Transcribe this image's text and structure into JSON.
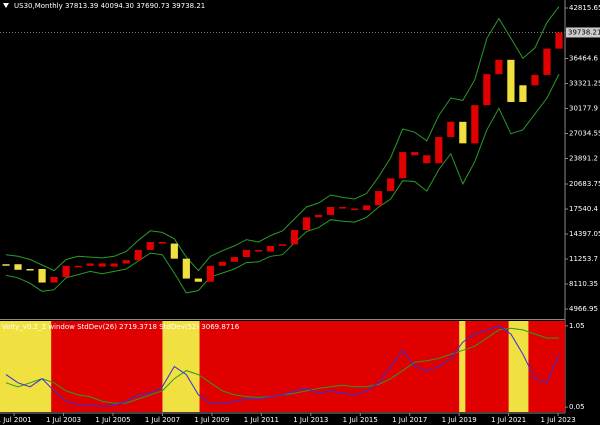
{
  "chart_data": [
    {
      "type": "candle",
      "title": "US30,Monthly  37813.39 40094.30 37690.73 39738.21",
      "xlim": [
        2000.93,
        2023.78
      ],
      "xticks": [
        {
          "value": 2001.5,
          "label": "1 Jul 2001"
        },
        {
          "value": 2003.5,
          "label": "1 Jul 2003"
        },
        {
          "value": 2005.5,
          "label": "1 Jul 2005"
        },
        {
          "value": 2007.5,
          "label": "1 Jul 2007"
        },
        {
          "value": 2009.5,
          "label": "1 Jul 2009"
        },
        {
          "value": 2011.5,
          "label": "1 Jul 2011"
        },
        {
          "value": 2013.5,
          "label": "1 Jul 2013"
        },
        {
          "value": 2015.5,
          "label": "1 Jul 2015"
        },
        {
          "value": 2017.5,
          "label": "1 Jul 2017"
        },
        {
          "value": 2019.5,
          "label": "1 Jul 2019"
        },
        {
          "value": 2021.5,
          "label": "1 Jul 2021"
        },
        {
          "value": 2023.5,
          "label": "1 Jul 2023"
        }
      ],
      "ylim": [
        3840,
        43820
      ],
      "yticks": [
        42815.65,
        36464.6,
        33321.25,
        30177.9,
        27034.55,
        23891.2,
        20683.75,
        17540.4,
        14397.05,
        11253.7,
        8110.35,
        4966.95
      ],
      "price_label": 39738.21,
      "series": [
        {
          "name": "close",
          "color": "#e00000",
          "values": [
            10600,
            9900,
            10000,
            8300,
            9000,
            10400,
            10400,
            10700,
            10300,
            10700,
            11100,
            12400,
            13400,
            13200,
            11300,
            8800,
            8400,
            10400,
            10900,
            11500,
            12400,
            12200,
            12900,
            13100,
            14900,
            16500,
            16800,
            17800,
            17600,
            17400,
            18000,
            19800,
            21400,
            24700,
            24300,
            23300,
            26600,
            28500,
            25800,
            30600,
            34500,
            36300,
            31000,
            33100,
            34400,
            37700,
            39700
          ]
        },
        {
          "name": "upper",
          "color": "#2a9a2a",
          "values": [
            11800,
            11600,
            11200,
            10500,
            9800,
            11200,
            11600,
            11500,
            11400,
            11600,
            12200,
            13600,
            14800,
            14600,
            13800,
            11500,
            9800,
            11600,
            12300,
            12900,
            13700,
            13400,
            14200,
            14800,
            16300,
            17800,
            18300,
            19300,
            19000,
            18800,
            19500,
            21600,
            24000,
            27600,
            27200,
            26100,
            29300,
            31500,
            31200,
            33800,
            39000,
            41500,
            39000,
            36500,
            37800,
            41000,
            43000
          ]
        },
        {
          "name": "lower",
          "color": "#2a9a2a",
          "values": [
            9200,
            8900,
            8200,
            7200,
            7400,
            8900,
            9300,
            9700,
            9400,
            9700,
            10000,
            11000,
            12000,
            11800,
            9500,
            7000,
            7300,
            9000,
            9500,
            10000,
            10800,
            10900,
            11600,
            11800,
            13300,
            14700,
            15200,
            16200,
            16000,
            15900,
            16500,
            17800,
            18800,
            21100,
            21000,
            19800,
            22500,
            24500,
            20700,
            23500,
            27500,
            30200,
            27000,
            27500,
            29500,
            31500,
            34500
          ]
        }
      ],
      "highlight_color": "#f0e040",
      "highlight_ranges": [
        [
          2000.93,
          2003.0
        ],
        [
          2007.5,
          2009.0
        ],
        [
          2019.5,
          2019.75
        ],
        [
          2021.5,
          2022.3
        ]
      ]
    },
    {
      "type": "line",
      "title": "Volty_v0.2_2 window  StdDev(26) 2719.3718  StdDev(52) 3069.8716",
      "xlim": [
        2000.93,
        2023.78
      ],
      "ylim": [
        -0.01,
        1.11
      ],
      "yticks": [
        1.05,
        0.05
      ],
      "background_color": "#e00000",
      "series": [
        {
          "name": "StdDev(26)",
          "color": "#3030e0",
          "values": [
            0.45,
            0.35,
            0.3,
            0.4,
            0.25,
            0.12,
            0.08,
            0.07,
            0.06,
            0.07,
            0.12,
            0.2,
            0.22,
            0.3,
            0.55,
            0.45,
            0.2,
            0.1,
            0.1,
            0.12,
            0.15,
            0.15,
            0.18,
            0.2,
            0.25,
            0.28,
            0.22,
            0.25,
            0.22,
            0.2,
            0.25,
            0.35,
            0.55,
            0.75,
            0.55,
            0.5,
            0.55,
            0.65,
            0.85,
            0.95,
            1.0,
            1.05,
            0.95,
            0.7,
            0.4,
            0.35,
            0.7
          ]
        },
        {
          "name": "StdDev(52)",
          "color": "#2a9a2a",
          "values": [
            0.35,
            0.3,
            0.35,
            0.4,
            0.35,
            0.25,
            0.2,
            0.18,
            0.12,
            0.1,
            0.1,
            0.15,
            0.2,
            0.25,
            0.4,
            0.5,
            0.45,
            0.35,
            0.25,
            0.2,
            0.18,
            0.17,
            0.18,
            0.2,
            0.22,
            0.25,
            0.28,
            0.3,
            0.32,
            0.3,
            0.3,
            0.33,
            0.4,
            0.5,
            0.6,
            0.62,
            0.65,
            0.7,
            0.75,
            0.8,
            0.9,
            1.0,
            1.02,
            1.0,
            0.95,
            0.9,
            0.9
          ]
        }
      ]
    }
  ]
}
